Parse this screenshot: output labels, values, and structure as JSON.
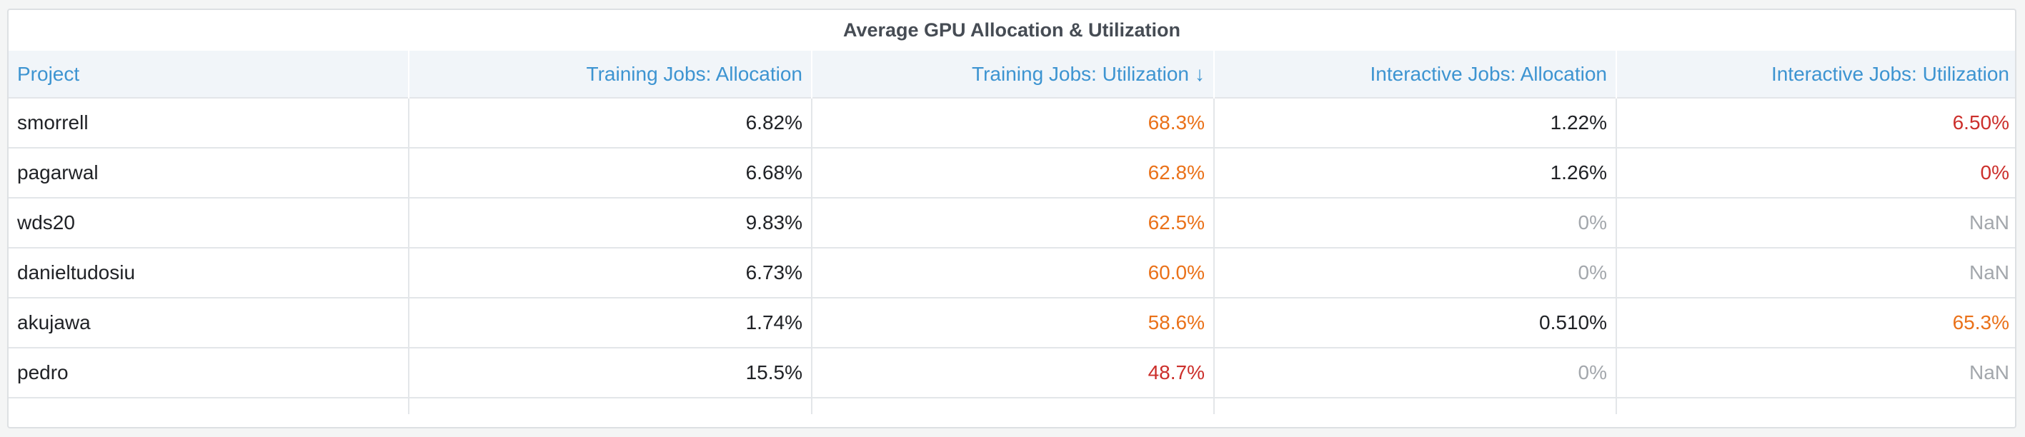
{
  "panel": {
    "title": "Average GPU Allocation & Utilization"
  },
  "table": {
    "columns": [
      {
        "label": "Project",
        "align": "left"
      },
      {
        "label": "Training Jobs: Allocation",
        "align": "right"
      },
      {
        "label": "Training Jobs: Utilization",
        "align": "right",
        "sort_arrow": "↓"
      },
      {
        "label": "Interactive Jobs: Allocation",
        "align": "right"
      },
      {
        "label": "Interactive Jobs: Utilization",
        "align": "right"
      }
    ],
    "rows": [
      {
        "project": "smorrell",
        "train_alloc": "6.82%",
        "train_util": "68.3%",
        "inter_alloc": "1.22%",
        "inter_util": "6.50%"
      },
      {
        "project": "pagarwal",
        "train_alloc": "6.68%",
        "train_util": "62.8%",
        "inter_alloc": "1.26%",
        "inter_util": "0%"
      },
      {
        "project": "wds20",
        "train_alloc": "9.83%",
        "train_util": "62.5%",
        "inter_alloc": "0%",
        "inter_util": "NaN"
      },
      {
        "project": "danieltudosiu",
        "train_alloc": "6.73%",
        "train_util": "60.0%",
        "inter_alloc": "0%",
        "inter_util": "NaN"
      },
      {
        "project": "akujawa",
        "train_alloc": "1.74%",
        "train_util": "58.6%",
        "inter_alloc": "0.510%",
        "inter_util": "65.3%"
      },
      {
        "project": "pedro",
        "train_alloc": "15.5%",
        "train_util": "48.7%",
        "inter_alloc": "0%",
        "inter_util": "NaN"
      }
    ]
  },
  "colors": {
    "header_text": "#3d94d1",
    "value_default": "#202226",
    "value_warning": "#ea7119",
    "value_critical": "#cc2f2b",
    "value_muted": "#a3a7ac"
  }
}
